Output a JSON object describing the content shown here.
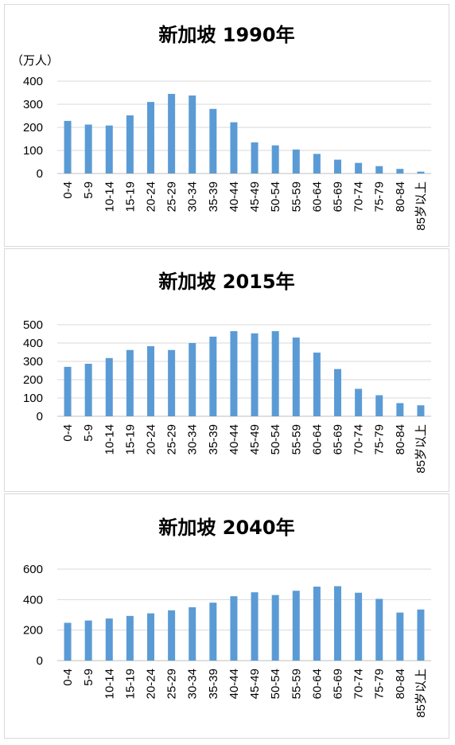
{
  "chart_data": [
    {
      "type": "bar",
      "title": "新加坡 1990年",
      "unit_label": "（万人）",
      "categories": [
        "0-4",
        "5-9",
        "10-14",
        "15-19",
        "20-24",
        "25-29",
        "30-34",
        "35-39",
        "40-44",
        "45-49",
        "50-54",
        "55-59",
        "60-64",
        "65-69",
        "70-74",
        "75-79",
        "80-84",
        "85岁以上"
      ],
      "values": [
        228,
        212,
        208,
        252,
        310,
        345,
        338,
        280,
        222,
        135,
        122,
        104,
        85,
        60,
        46,
        32,
        20,
        8
      ],
      "yticks": [
        0,
        100,
        200,
        300,
        400
      ],
      "ylim": [
        0,
        400
      ],
      "grid": true,
      "color": "#5b9bd5"
    },
    {
      "type": "bar",
      "title": "新加坡 2015年",
      "unit_label": "",
      "categories": [
        "0-4",
        "5-9",
        "10-14",
        "15-19",
        "20-24",
        "25-29",
        "30-34",
        "35-39",
        "40-44",
        "45-49",
        "50-54",
        "55-59",
        "60-64",
        "65-69",
        "70-74",
        "75-79",
        "80-84",
        "85岁以上"
      ],
      "values": [
        270,
        287,
        318,
        362,
        383,
        362,
        400,
        435,
        465,
        453,
        465,
        430,
        348,
        258,
        150,
        115,
        72,
        60
      ],
      "yticks": [
        0,
        100,
        200,
        300,
        400,
        500
      ],
      "ylim": [
        0,
        500
      ],
      "grid": true,
      "color": "#5b9bd5"
    },
    {
      "type": "bar",
      "title": "新加坡 2040年",
      "unit_label": "",
      "categories": [
        "0-4",
        "5-9",
        "10-14",
        "15-19",
        "20-24",
        "25-29",
        "30-34",
        "35-39",
        "40-44",
        "45-49",
        "50-54",
        "55-59",
        "60-64",
        "65-69",
        "70-74",
        "75-79",
        "80-84",
        "85岁以上"
      ],
      "values": [
        248,
        263,
        276,
        293,
        310,
        330,
        350,
        380,
        422,
        448,
        430,
        458,
        485,
        488,
        445,
        405,
        315,
        335
      ],
      "yticks": [
        0,
        200,
        400,
        600
      ],
      "ylim": [
        0,
        600
      ],
      "grid": true,
      "color": "#5b9bd5"
    }
  ]
}
